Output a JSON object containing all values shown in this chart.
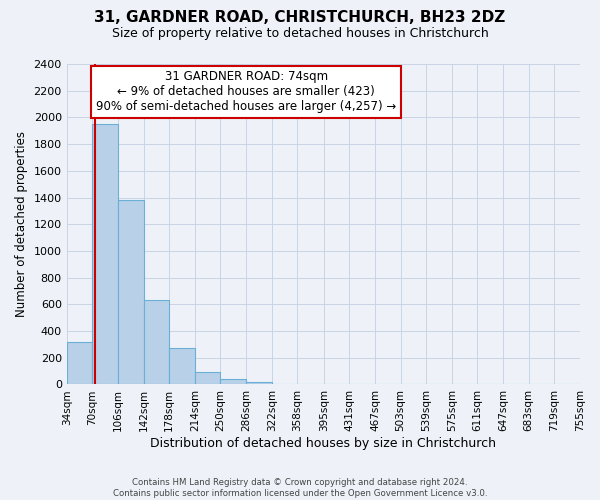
{
  "title": "31, GARDNER ROAD, CHRISTCHURCH, BH23 2DZ",
  "subtitle": "Size of property relative to detached houses in Christchurch",
  "xlabel": "Distribution of detached houses by size in Christchurch",
  "ylabel": "Number of detached properties",
  "bin_edges": [
    34,
    70,
    106,
    142,
    178,
    214,
    250,
    286,
    322,
    358,
    395,
    431,
    467,
    503,
    539,
    575,
    611,
    647,
    683,
    719,
    755
  ],
  "bar_heights": [
    315,
    1950,
    1380,
    630,
    275,
    90,
    40,
    20,
    0,
    0,
    0,
    0,
    0,
    0,
    0,
    0,
    0,
    0,
    0,
    0
  ],
  "bar_color": "#b8d0e8",
  "bar_edge_color": "#6baed6",
  "vline_x": 74,
  "vline_color": "#cc0000",
  "ylim": [
    0,
    2400
  ],
  "yticks": [
    0,
    200,
    400,
    600,
    800,
    1000,
    1200,
    1400,
    1600,
    1800,
    2000,
    2200,
    2400
  ],
  "tick_labels": [
    "34sqm",
    "70sqm",
    "106sqm",
    "142sqm",
    "178sqm",
    "214sqm",
    "250sqm",
    "286sqm",
    "322sqm",
    "358sqm",
    "395sqm",
    "431sqm",
    "467sqm",
    "503sqm",
    "539sqm",
    "575sqm",
    "611sqm",
    "647sqm",
    "683sqm",
    "719sqm",
    "755sqm"
  ],
  "annotation_title": "31 GARDNER ROAD: 74sqm",
  "annotation_line1": "← 9% of detached houses are smaller (423)",
  "annotation_line2": "90% of semi-detached houses are larger (4,257) →",
  "annotation_box_color": "#ffffff",
  "annotation_border_color": "#cc0000",
  "footer1": "Contains HM Land Registry data © Crown copyright and database right 2024.",
  "footer2": "Contains public sector information licensed under the Open Government Licence v3.0.",
  "bg_color": "#eef2f8",
  "grid_color": "#c8d4e4"
}
